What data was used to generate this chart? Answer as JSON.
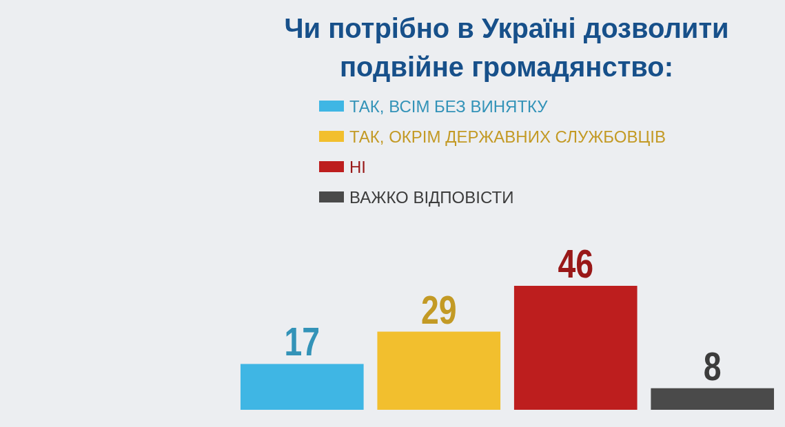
{
  "chart_data": {
    "type": "bar",
    "title": "Чи потрібно в Україні дозволити подвійне громадянство:",
    "categories": [
      null,
      null,
      null,
      null
    ],
    "series": [
      {
        "name": "ТАК, ВСІМ БЕЗ ВИНЯТКУ",
        "color": "#3fb6e4",
        "values": [
          17,
          null,
          null,
          null
        ]
      },
      {
        "name": "ТАК, ОКРІМ ДЕРЖАВНИХ СЛУЖБОВЦІВ",
        "color": "#f2bf2e",
        "values": [
          null,
          29,
          null,
          null
        ]
      },
      {
        "name": "НІ",
        "color": "#bd1e1e",
        "values": [
          null,
          null,
          46,
          null
        ]
      },
      {
        "name": "ВАЖКО ВІДПОВІСТИ",
        "color": "#4a4a4a",
        "values": [
          null,
          null,
          null,
          8
        ]
      }
    ],
    "stacked": true,
    "data_labels": true,
    "legend": "top",
    "grid": false
  }
}
